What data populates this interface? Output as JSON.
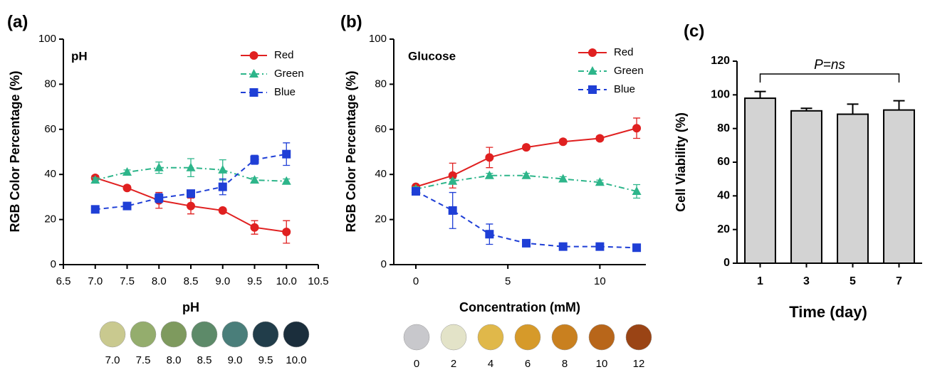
{
  "chart_data": [
    {
      "type": "line",
      "panel_label": "(a)",
      "annotation": "pH",
      "x_label": "pH",
      "y_label": "RGB Color Percentage (%)",
      "x": [
        7,
        7.5,
        8,
        8.5,
        9,
        9.5,
        10
      ],
      "xlim": [
        6.5,
        10.5
      ],
      "xticks": [
        6.5,
        {
          "value": 7,
          "label": "7.0"
        },
        7.5,
        {
          "value": 8,
          "label": "8.0"
        },
        8.5,
        {
          "value": 9,
          "label": "9.0"
        },
        9.5,
        {
          "value": 10,
          "label": "10.0"
        },
        10.5
      ],
      "ylim": [
        0,
        100
      ],
      "yticks": [
        0,
        20,
        40,
        60,
        80,
        100
      ],
      "series": [
        {
          "name": "Red",
          "color": "#e02020",
          "linestyle": "solid",
          "marker": "circle",
          "values": [
            38.5,
            34,
            28.5,
            26,
            24,
            16.5,
            14.5
          ],
          "errors": [
            1,
            1,
            3.5,
            3.5,
            1,
            3,
            5
          ]
        },
        {
          "name": "Green",
          "color": "#2db58a",
          "linestyle": "dashdot",
          "marker": "triangle",
          "values": [
            37.5,
            41,
            43,
            43,
            42,
            37.5,
            37
          ],
          "errors": [
            1,
            1,
            2.5,
            4,
            4.5,
            1,
            1
          ]
        },
        {
          "name": "Blue",
          "color": "#1f3fd6",
          "linestyle": "dashed",
          "marker": "square",
          "values": [
            24.5,
            26,
            29.5,
            31.5,
            34.5,
            46.5,
            49
          ],
          "errors": [
            1,
            1,
            2,
            1.5,
            3.5,
            2,
            5
          ]
        }
      ],
      "swatches": {
        "labels": [
          "7.0",
          "7.5",
          "8.0",
          "8.5",
          "9.0",
          "9.5",
          "10.0"
        ],
        "colors": [
          "#c9c98f",
          "#94ad6d",
          "#7e9a5e",
          "#5d8a69",
          "#4a7e7a",
          "#213d4a",
          "#1b2e3c"
        ]
      }
    },
    {
      "type": "line",
      "panel_label": "(b)",
      "annotation": "Glucose",
      "x_label": "Concentration (mM)",
      "y_label": "RGB Color Percentage (%)",
      "x": [
        0,
        2,
        4,
        6,
        8,
        10,
        12
      ],
      "xlim": [
        -1.2,
        12.5
      ],
      "xticks": [
        0,
        5,
        10
      ],
      "ylim": [
        0,
        100
      ],
      "yticks": [
        0,
        20,
        40,
        60,
        80,
        100
      ],
      "series": [
        {
          "name": "Red",
          "color": "#e02020",
          "linestyle": "solid",
          "marker": "circle",
          "values": [
            34.5,
            39.5,
            47.5,
            52,
            54.5,
            56,
            60.5
          ],
          "errors": [
            1,
            5.5,
            4.5,
            1,
            1,
            1,
            4.5
          ]
        },
        {
          "name": "Green",
          "color": "#2db58a",
          "linestyle": "dashdot",
          "marker": "triangle",
          "values": [
            33.5,
            37,
            39.5,
            39.5,
            38,
            36.5,
            32.5
          ],
          "errors": [
            1,
            1,
            1,
            1,
            1,
            1,
            3
          ]
        },
        {
          "name": "Blue",
          "color": "#1f3fd6",
          "linestyle": "dashed",
          "marker": "square",
          "values": [
            32.5,
            24,
            13.5,
            9.5,
            8,
            8,
            7.5
          ],
          "errors": [
            1,
            8,
            4.5,
            1,
            1,
            1,
            1
          ]
        }
      ],
      "swatches": {
        "labels": [
          "0",
          "2",
          "4",
          "6",
          "8",
          "10",
          "12"
        ],
        "colors": [
          "#c8c8cc",
          "#e3e3c8",
          "#e0b84a",
          "#d69a2a",
          "#c9801f",
          "#b8661a",
          "#9a4415"
        ]
      }
    },
    {
      "type": "bar",
      "panel_label": "(c)",
      "annotation": "P=ns",
      "x_label": "Time (day)",
      "y_label": "Cell Viability (%)",
      "categories": [
        "1",
        "3",
        "5",
        "7"
      ],
      "values": [
        98,
        90.5,
        88.5,
        91
      ],
      "errors": [
        4,
        1.5,
        6,
        5.5
      ],
      "color": "#d3d3d3",
      "ylim": [
        0,
        120
      ],
      "yticks": [
        0,
        20,
        40,
        60,
        80,
        100,
        120
      ]
    }
  ]
}
